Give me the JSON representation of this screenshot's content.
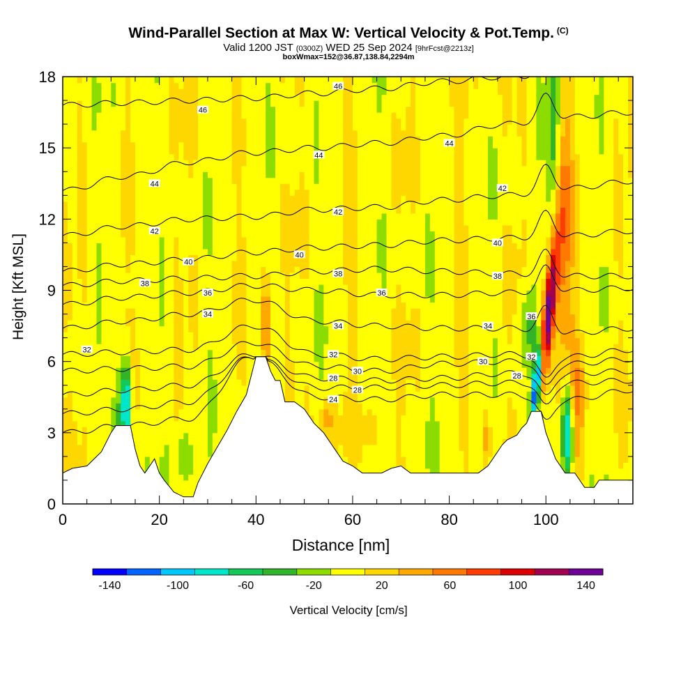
{
  "header": {
    "title": "Wind-Parallel Section at Max W: Vertical Velocity & Pot.Temp.",
    "copyright": "(C)",
    "valid_prefix": "Valid 1200 JST",
    "utc": "(0300Z)",
    "valid_date": "WED 25 Sep 2024",
    "forecast": "[9hrFcst@2213z]",
    "boxline": "boxWmax=152@36.87,138.84,2294m"
  },
  "chart_data": {
    "type": "heatmap",
    "xlabel": "Distance [nm]",
    "ylabel": "Height [Kft MSL]",
    "xlim": [
      0,
      118
    ],
    "ylim": [
      0,
      18
    ],
    "xticks": [
      0,
      20,
      40,
      60,
      80,
      100
    ],
    "yticks": [
      0,
      3,
      6,
      9,
      12,
      15,
      18
    ],
    "grid": false,
    "colorbar": {
      "label": "Vertical Velocity [cm/s]",
      "range": [
        -150,
        150
      ],
      "ticks": [
        -140,
        -100,
        -60,
        -20,
        20,
        60,
        100,
        140
      ],
      "colors": [
        "#0000ff",
        "#0064ff",
        "#00c8ff",
        "#00e6c8",
        "#14c85a",
        "#32b428",
        "#8cdc00",
        "#ffff00",
        "#ffd700",
        "#ffa800",
        "#ff7800",
        "#ff3c00",
        "#dc0000",
        "#a00050",
        "#6e0096"
      ]
    },
    "velocity_features": [
      {
        "x": 100.5,
        "y": 8.0,
        "w": 150
      },
      {
        "x": 100,
        "y": 6.0,
        "w": 110
      },
      {
        "x": 98,
        "y": 5.0,
        "w": -140
      },
      {
        "x": 97,
        "y": 7.5,
        "w": -60
      },
      {
        "x": 103,
        "y": 11.0,
        "w": 80
      },
      {
        "x": 104,
        "y": 3.0,
        "w": -100
      },
      {
        "x": 13,
        "y": 4.2,
        "w": -90
      },
      {
        "x": 42,
        "y": 7.5,
        "w": 55
      },
      {
        "x": 54,
        "y": 3.6,
        "w": 45
      }
    ],
    "terrain": [
      [
        0,
        1.3
      ],
      [
        2,
        1.5
      ],
      [
        5,
        1.6
      ],
      [
        8,
        2.2
      ],
      [
        10,
        3.0
      ],
      [
        11,
        3.3
      ],
      [
        14,
        3.3
      ],
      [
        15,
        2.3
      ],
      [
        16,
        1.6
      ],
      [
        17,
        1.3
      ],
      [
        18,
        1.6
      ],
      [
        19,
        1.9
      ],
      [
        20,
        1.3
      ],
      [
        21,
        1.0
      ],
      [
        23,
        0.5
      ],
      [
        25,
        0.3
      ],
      [
        27,
        0.3
      ],
      [
        28,
        0.9
      ],
      [
        30,
        1.7
      ],
      [
        32,
        2.4
      ],
      [
        34,
        3.1
      ],
      [
        36,
        3.9
      ],
      [
        38,
        4.6
      ],
      [
        39,
        5.4
      ],
      [
        40,
        6.2
      ],
      [
        42,
        6.2
      ],
      [
        43,
        5.6
      ],
      [
        44,
        5.2
      ],
      [
        45,
        5.2
      ],
      [
        46,
        4.3
      ],
      [
        48,
        4.3
      ],
      [
        50,
        4.0
      ],
      [
        52,
        3.4
      ],
      [
        54,
        3.0
      ],
      [
        56,
        2.4
      ],
      [
        58,
        1.8
      ],
      [
        60,
        1.6
      ],
      [
        62,
        1.3
      ],
      [
        66,
        1.3
      ],
      [
        68,
        1.5
      ],
      [
        70,
        1.6
      ],
      [
        72,
        1.3
      ],
      [
        78,
        1.3
      ],
      [
        86,
        1.3
      ],
      [
        88,
        1.6
      ],
      [
        89,
        1.9
      ],
      [
        90,
        2.2
      ],
      [
        91,
        2.5
      ],
      [
        92,
        2.7
      ],
      [
        94,
        2.9
      ],
      [
        95,
        3.2
      ],
      [
        96,
        3.4
      ],
      [
        97,
        3.9
      ],
      [
        99,
        3.9
      ],
      [
        100,
        3.0
      ],
      [
        102,
        1.9
      ],
      [
        104,
        1.3
      ],
      [
        106,
        1.3
      ],
      [
        107,
        1.0
      ],
      [
        108,
        0.7
      ],
      [
        110,
        0.7
      ],
      [
        111,
        1.0
      ],
      [
        113,
        1.0
      ],
      [
        115,
        1.0
      ],
      [
        118,
        1.0
      ]
    ],
    "isentropes": [
      {
        "theta": 46,
        "heights": [
          16.8,
          16.9,
          17.0,
          17.1,
          17.3,
          17.5,
          17.8,
          18.0,
          18.1,
          18.2
        ]
      },
      {
        "theta": 44,
        "heights": [
          13.2,
          13.8,
          14.4,
          14.8,
          15.0,
          15.2,
          15.5,
          16.0,
          16.3,
          16.5
        ]
      },
      {
        "theta": 42,
        "heights": [
          11.3,
          11.7,
          12.0,
          12.1,
          12.4,
          12.5,
          12.8,
          13.0,
          13.3,
          13.6
        ]
      },
      {
        "theta": 40,
        "heights": [
          9.8,
          10.1,
          10.3,
          10.6,
          10.8,
          10.9,
          11.1,
          11.2,
          11.3,
          11.5
        ]
      },
      {
        "theta": 38,
        "heights": [
          9.2,
          9.4,
          9.5,
          9.6,
          9.8,
          9.9,
          9.8,
          9.7,
          9.6,
          9.6
        ]
      },
      {
        "theta": 36,
        "heights": [
          8.4,
          8.7,
          8.9,
          9.2,
          9.0,
          8.8,
          8.8,
          8.9,
          9.0,
          9.1
        ]
      },
      {
        "theta": 34,
        "heights": [
          7.4,
          7.7,
          8.0,
          8.6,
          7.7,
          7.5,
          7.4,
          7.4,
          7.2,
          7.4
        ]
      },
      {
        "theta": 32,
        "heights": [
          6.3,
          6.4,
          6.5,
          7.5,
          6.3,
          6.1,
          6.2,
          6.3,
          6.2,
          6.5
        ]
      },
      {
        "theta": 30,
        "heights": [
          5.6,
          5.7,
          5.8,
          6.8,
          5.8,
          5.6,
          5.9,
          6.0,
          5.9,
          6.1
        ]
      },
      {
        "theta": 28,
        "heights": [
          4.6,
          4.8,
          5.0,
          6.3,
          5.3,
          5.2,
          5.3,
          5.5,
          5.5,
          5.6
        ]
      },
      {
        "theta": 26,
        "heights": [
          3.8,
          4.0,
          4.3,
          6.2,
          4.9,
          4.9,
          5.0,
          5.1,
          5.1,
          5.2
        ]
      },
      {
        "theta": 24,
        "heights": [
          3.0,
          3.3,
          3.6,
          6.2,
          4.5,
          4.4,
          4.6,
          4.6,
          4.4,
          4.8
        ]
      }
    ],
    "contour_labels": [
      {
        "text": "46",
        "x": 29,
        "y": 16.6
      },
      {
        "text": "46",
        "x": 57,
        "y": 17.6
      },
      {
        "text": "44",
        "x": 19,
        "y": 13.5
      },
      {
        "text": "44",
        "x": 53,
        "y": 14.7
      },
      {
        "text": "44",
        "x": 80,
        "y": 15.2
      },
      {
        "text": "42",
        "x": 19,
        "y": 11.5
      },
      {
        "text": "42",
        "x": 57,
        "y": 12.3
      },
      {
        "text": "42",
        "x": 91,
        "y": 13.3
      },
      {
        "text": "40",
        "x": 26,
        "y": 10.2
      },
      {
        "text": "40",
        "x": 49,
        "y": 10.5
      },
      {
        "text": "40",
        "x": 90,
        "y": 11.0
      },
      {
        "text": "38",
        "x": 17,
        "y": 9.3
      },
      {
        "text": "38",
        "x": 57,
        "y": 9.7
      },
      {
        "text": "38",
        "x": 90,
        "y": 9.6
      },
      {
        "text": "36",
        "x": 30,
        "y": 8.9
      },
      {
        "text": "36",
        "x": 66,
        "y": 8.9
      },
      {
        "text": "36",
        "x": 97,
        "y": 7.9
      },
      {
        "text": "34",
        "x": 30,
        "y": 8.0
      },
      {
        "text": "34",
        "x": 57,
        "y": 7.5
      },
      {
        "text": "34",
        "x": 88,
        "y": 7.5
      },
      {
        "text": "32",
        "x": 5,
        "y": 6.5
      },
      {
        "text": "32",
        "x": 56,
        "y": 6.3
      },
      {
        "text": "32",
        "x": 97,
        "y": 6.2
      },
      {
        "text": "30",
        "x": 61,
        "y": 5.6
      },
      {
        "text": "30",
        "x": 87,
        "y": 6.0
      },
      {
        "text": "28",
        "x": 56,
        "y": 5.3
      },
      {
        "text": "28",
        "x": 61,
        "y": 4.8
      },
      {
        "text": "28",
        "x": 94,
        "y": 5.4
      },
      {
        "text": "24",
        "x": 56,
        "y": 4.4
      }
    ]
  }
}
